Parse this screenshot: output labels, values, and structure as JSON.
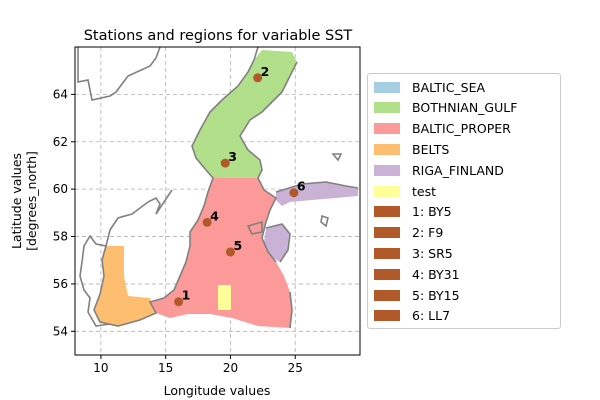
{
  "title": "Stations and regions for variable SST",
  "chart_data": {
    "type": "map",
    "title": "Stations and regions for variable SST",
    "xlabel": "Longitude values",
    "ylabel": "Latitude values\n[degrees_north]",
    "ylabel_lines": [
      "Latitude values",
      "[degrees_north]"
    ],
    "xlim": [
      8,
      30
    ],
    "ylim": [
      53,
      66
    ],
    "xticks": [
      10,
      15,
      20,
      25
    ],
    "yticks": [
      54,
      56,
      58,
      60,
      62,
      64
    ],
    "grid": true,
    "legend_position": "right",
    "regions": [
      {
        "name": "BALTIC_SEA",
        "color": "#a6cee3"
      },
      {
        "name": "BOTHNIAN_GULF",
        "color": "#b2df8a"
      },
      {
        "name": "BALTIC_PROPER",
        "color": "#fb9a99"
      },
      {
        "name": "BELTS",
        "color": "#fdbf6f"
      },
      {
        "name": "RIGA_FINLAND",
        "color": "#cab2d6"
      },
      {
        "name": "test",
        "color": "#ffff99"
      }
    ],
    "stations": [
      {
        "label": "1",
        "name": "BY5",
        "lon": 16.0,
        "lat": 55.25
      },
      {
        "label": "2",
        "name": "F9",
        "lon": 22.1,
        "lat": 64.7
      },
      {
        "label": "3",
        "name": "SR5",
        "lon": 19.6,
        "lat": 61.1
      },
      {
        "label": "4",
        "name": "BY31",
        "lon": 18.2,
        "lat": 58.6
      },
      {
        "label": "5",
        "name": "BY15",
        "lon": 20.0,
        "lat": 57.35
      },
      {
        "label": "6",
        "name": "LL7",
        "lon": 24.9,
        "lat": 59.85
      }
    ],
    "station_color": "#b15928",
    "coastline_color": "#808080"
  },
  "legend": {
    "entries": [
      {
        "label": "BALTIC_SEA",
        "color": "#a6cee3"
      },
      {
        "label": "BOTHNIAN_GULF",
        "color": "#b2df8a"
      },
      {
        "label": "BALTIC_PROPER",
        "color": "#fb9a99"
      },
      {
        "label": "BELTS",
        "color": "#fdbf6f"
      },
      {
        "label": "RIGA_FINLAND",
        "color": "#cab2d6"
      },
      {
        "label": "test",
        "color": "#ffff99"
      },
      {
        "label": "1: BY5",
        "color": "#b15928"
      },
      {
        "label": "2: F9",
        "color": "#b15928"
      },
      {
        "label": "3: SR5",
        "color": "#b15928"
      },
      {
        "label": "4: BY31",
        "color": "#b15928"
      },
      {
        "label": "5: BY15",
        "color": "#b15928"
      },
      {
        "label": "6: LL7",
        "color": "#b15928"
      }
    ]
  }
}
